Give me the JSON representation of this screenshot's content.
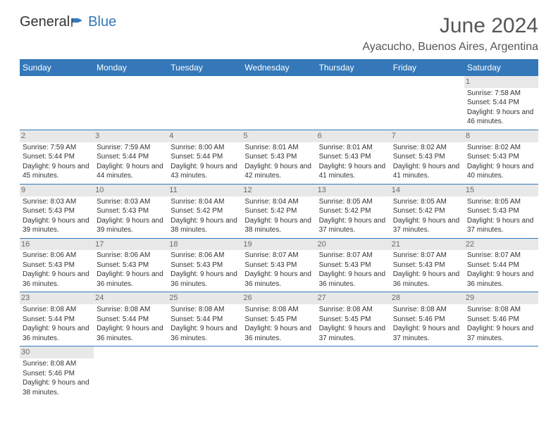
{
  "logo": {
    "text1": "General",
    "text2": "Blue"
  },
  "title": "June 2024",
  "location": "Ayacucho, Buenos Aires, Argentina",
  "weekdays": [
    "Sunday",
    "Monday",
    "Tuesday",
    "Wednesday",
    "Thursday",
    "Friday",
    "Saturday"
  ],
  "colors": {
    "header_bg": "#3478b9",
    "header_fg": "#ffffff",
    "text": "#333333",
    "daynum_bg": "#e8e8e8",
    "border": "#3478b9"
  },
  "weeks": [
    [
      {
        "day": "",
        "sunrise": "",
        "sunset": "",
        "daylight": ""
      },
      {
        "day": "",
        "sunrise": "",
        "sunset": "",
        "daylight": ""
      },
      {
        "day": "",
        "sunrise": "",
        "sunset": "",
        "daylight": ""
      },
      {
        "day": "",
        "sunrise": "",
        "sunset": "",
        "daylight": ""
      },
      {
        "day": "",
        "sunrise": "",
        "sunset": "",
        "daylight": ""
      },
      {
        "day": "",
        "sunrise": "",
        "sunset": "",
        "daylight": ""
      },
      {
        "day": "1",
        "sunrise": "Sunrise: 7:58 AM",
        "sunset": "Sunset: 5:44 PM",
        "daylight": "Daylight: 9 hours and 46 minutes."
      }
    ],
    [
      {
        "day": "2",
        "sunrise": "Sunrise: 7:59 AM",
        "sunset": "Sunset: 5:44 PM",
        "daylight": "Daylight: 9 hours and 45 minutes."
      },
      {
        "day": "3",
        "sunrise": "Sunrise: 7:59 AM",
        "sunset": "Sunset: 5:44 PM",
        "daylight": "Daylight: 9 hours and 44 minutes."
      },
      {
        "day": "4",
        "sunrise": "Sunrise: 8:00 AM",
        "sunset": "Sunset: 5:44 PM",
        "daylight": "Daylight: 9 hours and 43 minutes."
      },
      {
        "day": "5",
        "sunrise": "Sunrise: 8:01 AM",
        "sunset": "Sunset: 5:43 PM",
        "daylight": "Daylight: 9 hours and 42 minutes."
      },
      {
        "day": "6",
        "sunrise": "Sunrise: 8:01 AM",
        "sunset": "Sunset: 5:43 PM",
        "daylight": "Daylight: 9 hours and 41 minutes."
      },
      {
        "day": "7",
        "sunrise": "Sunrise: 8:02 AM",
        "sunset": "Sunset: 5:43 PM",
        "daylight": "Daylight: 9 hours and 41 minutes."
      },
      {
        "day": "8",
        "sunrise": "Sunrise: 8:02 AM",
        "sunset": "Sunset: 5:43 PM",
        "daylight": "Daylight: 9 hours and 40 minutes."
      }
    ],
    [
      {
        "day": "9",
        "sunrise": "Sunrise: 8:03 AM",
        "sunset": "Sunset: 5:43 PM",
        "daylight": "Daylight: 9 hours and 39 minutes."
      },
      {
        "day": "10",
        "sunrise": "Sunrise: 8:03 AM",
        "sunset": "Sunset: 5:43 PM",
        "daylight": "Daylight: 9 hours and 39 minutes."
      },
      {
        "day": "11",
        "sunrise": "Sunrise: 8:04 AM",
        "sunset": "Sunset: 5:42 PM",
        "daylight": "Daylight: 9 hours and 38 minutes."
      },
      {
        "day": "12",
        "sunrise": "Sunrise: 8:04 AM",
        "sunset": "Sunset: 5:42 PM",
        "daylight": "Daylight: 9 hours and 38 minutes."
      },
      {
        "day": "13",
        "sunrise": "Sunrise: 8:05 AM",
        "sunset": "Sunset: 5:42 PM",
        "daylight": "Daylight: 9 hours and 37 minutes."
      },
      {
        "day": "14",
        "sunrise": "Sunrise: 8:05 AM",
        "sunset": "Sunset: 5:42 PM",
        "daylight": "Daylight: 9 hours and 37 minutes."
      },
      {
        "day": "15",
        "sunrise": "Sunrise: 8:05 AM",
        "sunset": "Sunset: 5:43 PM",
        "daylight": "Daylight: 9 hours and 37 minutes."
      }
    ],
    [
      {
        "day": "16",
        "sunrise": "Sunrise: 8:06 AM",
        "sunset": "Sunset: 5:43 PM",
        "daylight": "Daylight: 9 hours and 36 minutes."
      },
      {
        "day": "17",
        "sunrise": "Sunrise: 8:06 AM",
        "sunset": "Sunset: 5:43 PM",
        "daylight": "Daylight: 9 hours and 36 minutes."
      },
      {
        "day": "18",
        "sunrise": "Sunrise: 8:06 AM",
        "sunset": "Sunset: 5:43 PM",
        "daylight": "Daylight: 9 hours and 36 minutes."
      },
      {
        "day": "19",
        "sunrise": "Sunrise: 8:07 AM",
        "sunset": "Sunset: 5:43 PM",
        "daylight": "Daylight: 9 hours and 36 minutes."
      },
      {
        "day": "20",
        "sunrise": "Sunrise: 8:07 AM",
        "sunset": "Sunset: 5:43 PM",
        "daylight": "Daylight: 9 hours and 36 minutes."
      },
      {
        "day": "21",
        "sunrise": "Sunrise: 8:07 AM",
        "sunset": "Sunset: 5:43 PM",
        "daylight": "Daylight: 9 hours and 36 minutes."
      },
      {
        "day": "22",
        "sunrise": "Sunrise: 8:07 AM",
        "sunset": "Sunset: 5:44 PM",
        "daylight": "Daylight: 9 hours and 36 minutes."
      }
    ],
    [
      {
        "day": "23",
        "sunrise": "Sunrise: 8:08 AM",
        "sunset": "Sunset: 5:44 PM",
        "daylight": "Daylight: 9 hours and 36 minutes."
      },
      {
        "day": "24",
        "sunrise": "Sunrise: 8:08 AM",
        "sunset": "Sunset: 5:44 PM",
        "daylight": "Daylight: 9 hours and 36 minutes."
      },
      {
        "day": "25",
        "sunrise": "Sunrise: 8:08 AM",
        "sunset": "Sunset: 5:44 PM",
        "daylight": "Daylight: 9 hours and 36 minutes."
      },
      {
        "day": "26",
        "sunrise": "Sunrise: 8:08 AM",
        "sunset": "Sunset: 5:45 PM",
        "daylight": "Daylight: 9 hours and 36 minutes."
      },
      {
        "day": "27",
        "sunrise": "Sunrise: 8:08 AM",
        "sunset": "Sunset: 5:45 PM",
        "daylight": "Daylight: 9 hours and 37 minutes."
      },
      {
        "day": "28",
        "sunrise": "Sunrise: 8:08 AM",
        "sunset": "Sunset: 5:46 PM",
        "daylight": "Daylight: 9 hours and 37 minutes."
      },
      {
        "day": "29",
        "sunrise": "Sunrise: 8:08 AM",
        "sunset": "Sunset: 5:46 PM",
        "daylight": "Daylight: 9 hours and 37 minutes."
      }
    ],
    [
      {
        "day": "30",
        "sunrise": "Sunrise: 8:08 AM",
        "sunset": "Sunset: 5:46 PM",
        "daylight": "Daylight: 9 hours and 38 minutes."
      },
      {
        "day": "",
        "sunrise": "",
        "sunset": "",
        "daylight": ""
      },
      {
        "day": "",
        "sunrise": "",
        "sunset": "",
        "daylight": ""
      },
      {
        "day": "",
        "sunrise": "",
        "sunset": "",
        "daylight": ""
      },
      {
        "day": "",
        "sunrise": "",
        "sunset": "",
        "daylight": ""
      },
      {
        "day": "",
        "sunrise": "",
        "sunset": "",
        "daylight": ""
      },
      {
        "day": "",
        "sunrise": "",
        "sunset": "",
        "daylight": ""
      }
    ]
  ]
}
